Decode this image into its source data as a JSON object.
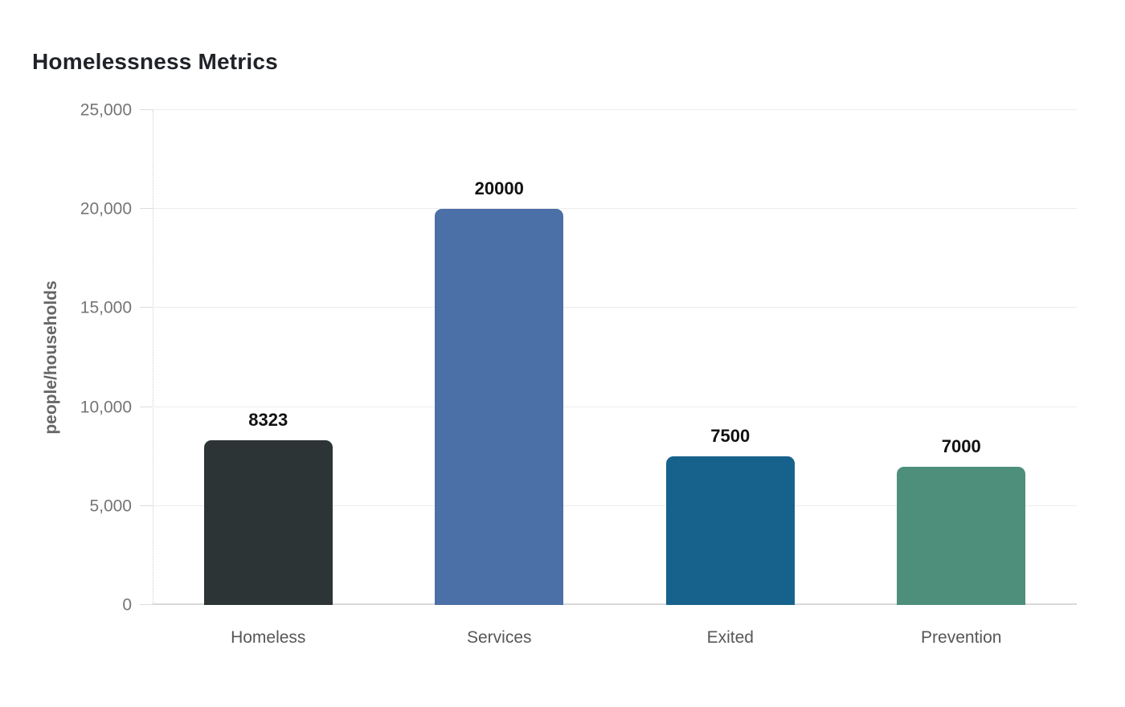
{
  "page": {
    "background_color": "#ffffff"
  },
  "chart_data": {
    "type": "bar",
    "title": "Homelessness Metrics",
    "xlabel": "",
    "ylabel": "people/households",
    "categories": [
      "Homeless",
      "Services",
      "Exited",
      "Prevention"
    ],
    "values": [
      8323,
      20000,
      7500,
      7000
    ],
    "value_labels": [
      "8323",
      "20000",
      "7500",
      "7000"
    ],
    "bar_colors": [
      "#2d3436",
      "#4b6fa7",
      "#17628c",
      "#4d8f7b"
    ],
    "ylim": [
      0,
      25000
    ],
    "yticks": {
      "values": [
        0,
        5000,
        10000,
        15000,
        20000,
        25000
      ],
      "labels": [
        "0",
        "5,000",
        "10,000",
        "15,000",
        "20,000",
        "25,000"
      ]
    },
    "grid": "horizontal",
    "legend": "none",
    "colors": {
      "title_text": "#1f2227",
      "tick_text": "#757575",
      "category_text": "#575757",
      "ylabel_text": "#666666",
      "value_label_text": "#111111",
      "gridline": "#ececec",
      "baseline": "#d9d9d9",
      "axis_dotted": "#cfcfcf"
    }
  }
}
